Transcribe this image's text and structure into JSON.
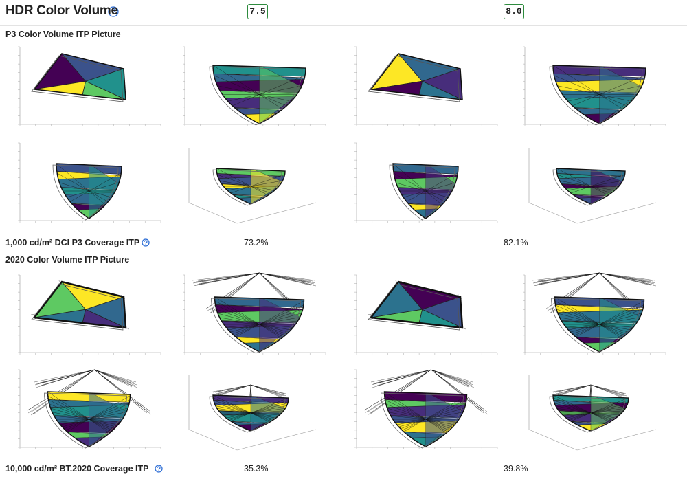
{
  "header": {
    "title": "HDR Color Volume",
    "scores": [
      "7.5",
      "8.0"
    ]
  },
  "sections": [
    {
      "title": "P3 Color Volume ITP Picture",
      "result": {
        "label": "1,000 cd/m² DCI P3 Coverage ITP",
        "values": [
          "73.2%",
          "82.1%"
        ]
      }
    },
    {
      "title": "2020 Color Volume ITP Picture",
      "result": {
        "label": "10,000 cd/m² BT.2020 Coverage ITP",
        "values": [
          "35.3%",
          "39.8%"
        ]
      }
    }
  ]
}
